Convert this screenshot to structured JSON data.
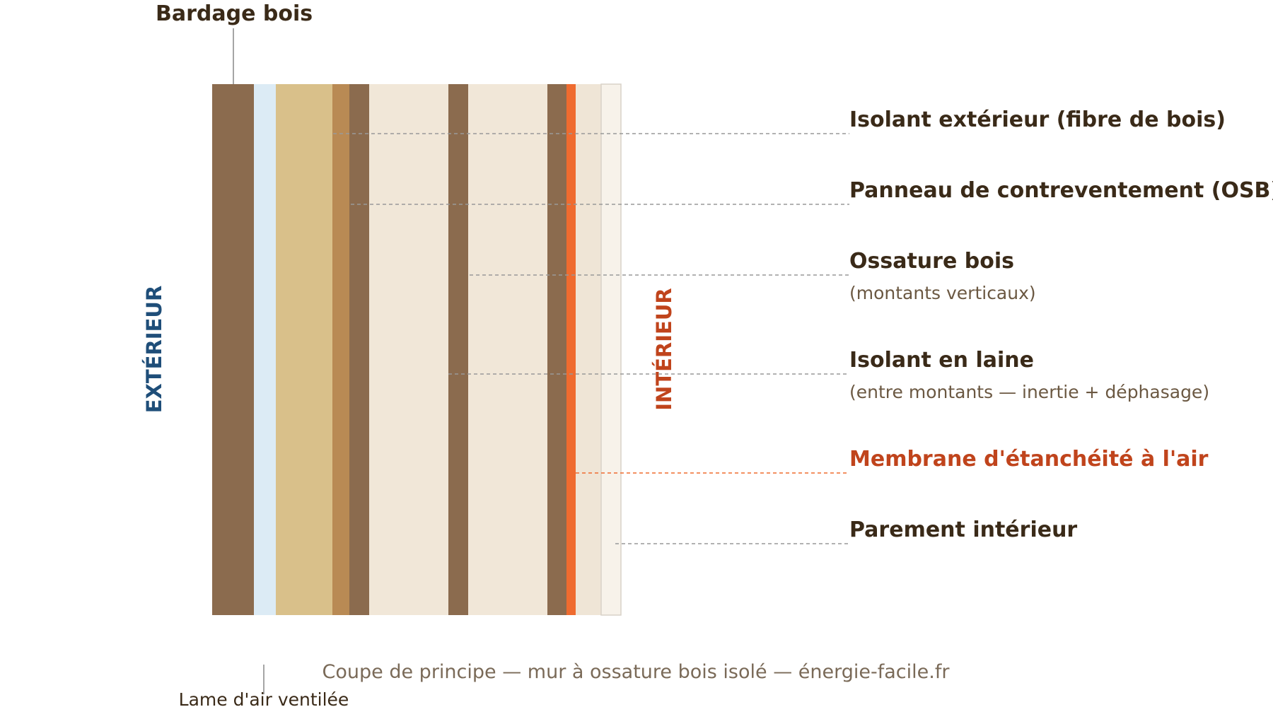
{
  "diagram": {
    "top_label": "Bardage bois",
    "bottom_label": "Lame d'air ventilée",
    "side_left": "EXTÉRIEUR",
    "side_right": "INTÉRIEUR",
    "callouts": [
      {
        "title": "Isolant extérieur (fibre de bois)"
      },
      {
        "title": "Panneau de contreventement (OSB)"
      },
      {
        "title": "Ossature bois",
        "note": "(montants verticaux)"
      },
      {
        "title": "Isolant en laine",
        "note": "(entre montants — inertie + déphasage)"
      },
      {
        "title": "Membrane d'étanchéité à l'air"
      },
      {
        "title": "Parement intérieur"
      }
    ],
    "caption": "Coupe de principe — mur à ossature bois isolé — énergie-facile.fr"
  }
}
